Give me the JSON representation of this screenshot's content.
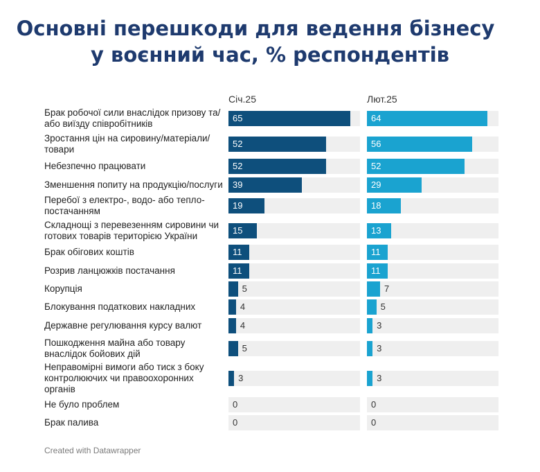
{
  "title": {
    "line1": "Основні перешкоди для ведення бізнесу",
    "line2": "у воєнний час, % респондентів"
  },
  "footer": "Created with Datawrapper",
  "colors": {
    "series1": "#0e4f7c",
    "series2": "#1aa3d0",
    "track": "#efefef",
    "title": "#1e3a6e"
  },
  "chart_data": {
    "type": "bar",
    "orientation": "horizontal",
    "title": "Основні перешкоди для ведення бізнесу у воєнний час, % респондентів",
    "categories": [
      "Брак робочої сили внаслідок призову та/ або виїзду співробітників",
      "Зростання цін на сировину/матеріали/ товари",
      "Небезпечно працювати",
      "Зменшення попиту на продукцію/послуги",
      "Перебої з електро-, водо- або тепло- постачанням",
      "Складнощі з перевезенням сировини чи готових товарів територією України",
      "Брак обігових коштів",
      "Розрив ланцюжків постачання",
      "Корупція",
      "Блокування податкових накладних",
      "Державне регулювання курсу валют",
      "Пошкодження майна або товару внаслідок бойових дій",
      "Неправомірні вимоги або тиск з боку контролюючих чи правоохоронних органів",
      "Не було проблем",
      "Брак палива"
    ],
    "series": [
      {
        "name": "Січ.25",
        "values": [
          65,
          52,
          52,
          39,
          19,
          15,
          11,
          11,
          5,
          4,
          4,
          5,
          3,
          0,
          0
        ]
      },
      {
        "name": "Лют.25",
        "values": [
          64,
          56,
          52,
          29,
          18,
          13,
          11,
          11,
          7,
          5,
          3,
          3,
          3,
          0,
          0
        ]
      }
    ],
    "xlim": [
      0,
      70
    ],
    "grid": false,
    "legend": "column headers above each panel"
  }
}
